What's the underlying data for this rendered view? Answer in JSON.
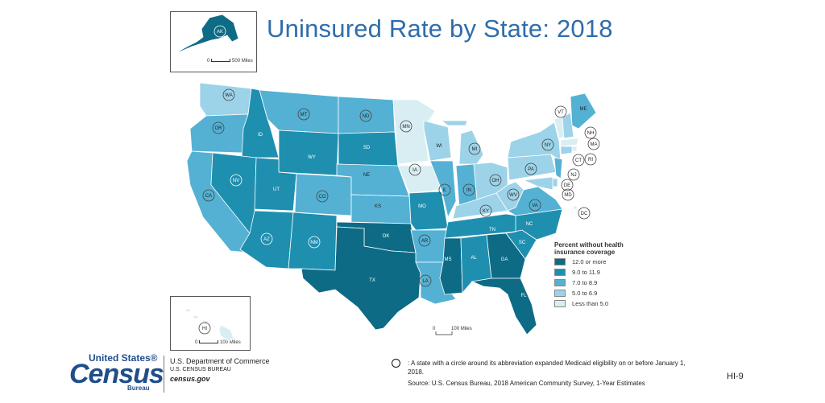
{
  "title": "Uninsured Rate by State: 2018",
  "legend": {
    "title": "Percent without health insurance coverage",
    "bins": [
      {
        "label": "12.0 or more",
        "color": "#0e6b86"
      },
      {
        "label": "9.0 to 11.9",
        "color": "#1f8fb0"
      },
      {
        "label": "7.0 to 8.9",
        "color": "#54b1d4"
      },
      {
        "label": "5.0 to 6.9",
        "color": "#9cd3e8"
      },
      {
        "label": "Less than 5.0",
        "color": "#d9eef3"
      }
    ]
  },
  "scales": {
    "alaska": "500 Miles",
    "hawaii": "100 Miles",
    "main": "100 Miles",
    "zero": "0"
  },
  "states": [
    {
      "abbr": "AK",
      "bin": 0,
      "expanded": true
    },
    {
      "abbr": "HI",
      "bin": 4,
      "expanded": true
    },
    {
      "abbr": "WA",
      "bin": 3,
      "expanded": true
    },
    {
      "abbr": "OR",
      "bin": 2,
      "expanded": true
    },
    {
      "abbr": "CA",
      "bin": 2,
      "expanded": true
    },
    {
      "abbr": "ID",
      "bin": 1,
      "expanded": false
    },
    {
      "abbr": "NV",
      "bin": 1,
      "expanded": true
    },
    {
      "abbr": "MT",
      "bin": 2,
      "expanded": true
    },
    {
      "abbr": "WY",
      "bin": 1,
      "expanded": false
    },
    {
      "abbr": "UT",
      "bin": 1,
      "expanded": false
    },
    {
      "abbr": "AZ",
      "bin": 1,
      "expanded": true
    },
    {
      "abbr": "CO",
      "bin": 2,
      "expanded": true
    },
    {
      "abbr": "NM",
      "bin": 1,
      "expanded": true
    },
    {
      "abbr": "ND",
      "bin": 2,
      "expanded": true
    },
    {
      "abbr": "SD",
      "bin": 1,
      "expanded": false
    },
    {
      "abbr": "NE",
      "bin": 2,
      "expanded": false
    },
    {
      "abbr": "KS",
      "bin": 2,
      "expanded": false
    },
    {
      "abbr": "OK",
      "bin": 0,
      "expanded": false
    },
    {
      "abbr": "TX",
      "bin": 0,
      "expanded": false
    },
    {
      "abbr": "MN",
      "bin": 4,
      "expanded": true
    },
    {
      "abbr": "IA",
      "bin": 4,
      "expanded": true
    },
    {
      "abbr": "MO",
      "bin": 1,
      "expanded": false
    },
    {
      "abbr": "AR",
      "bin": 2,
      "expanded": true
    },
    {
      "abbr": "LA",
      "bin": 2,
      "expanded": true
    },
    {
      "abbr": "WI",
      "bin": 3,
      "expanded": false
    },
    {
      "abbr": "IL",
      "bin": 2,
      "expanded": true
    },
    {
      "abbr": "MS",
      "bin": 0,
      "expanded": false
    },
    {
      "abbr": "MI",
      "bin": 3,
      "expanded": true
    },
    {
      "abbr": "IN",
      "bin": 2,
      "expanded": true
    },
    {
      "abbr": "KY",
      "bin": 3,
      "expanded": true
    },
    {
      "abbr": "TN",
      "bin": 1,
      "expanded": false
    },
    {
      "abbr": "AL",
      "bin": 1,
      "expanded": false
    },
    {
      "abbr": "OH",
      "bin": 3,
      "expanded": true
    },
    {
      "abbr": "WV",
      "bin": 3,
      "expanded": true
    },
    {
      "abbr": "GA",
      "bin": 0,
      "expanded": false
    },
    {
      "abbr": "FL",
      "bin": 0,
      "expanded": false
    },
    {
      "abbr": "SC",
      "bin": 1,
      "expanded": false
    },
    {
      "abbr": "NC",
      "bin": 1,
      "expanded": false
    },
    {
      "abbr": "VA",
      "bin": 2,
      "expanded": true
    },
    {
      "abbr": "PA",
      "bin": 3,
      "expanded": true
    },
    {
      "abbr": "NY",
      "bin": 3,
      "expanded": true
    },
    {
      "abbr": "VT",
      "bin": 4,
      "expanded": true
    },
    {
      "abbr": "ME",
      "bin": 2,
      "expanded": false
    },
    {
      "abbr": "NH",
      "bin": 3,
      "expanded": true
    },
    {
      "abbr": "MA",
      "bin": 4,
      "expanded": true
    },
    {
      "abbr": "RI",
      "bin": 4,
      "expanded": true
    },
    {
      "abbr": "CT",
      "bin": 3,
      "expanded": true
    },
    {
      "abbr": "NJ",
      "bin": 2,
      "expanded": true
    },
    {
      "abbr": "DE",
      "bin": 3,
      "expanded": true
    },
    {
      "abbr": "MD",
      "bin": 3,
      "expanded": true
    },
    {
      "abbr": "DC",
      "bin": 4,
      "expanded": true
    }
  ],
  "logo": {
    "top": "United States®",
    "main": "Census",
    "bureau": "Bureau"
  },
  "dept": {
    "line1": "U.S. Department of Commerce",
    "line2": "U.S. CENSUS BUREAU",
    "line3": "census.gov"
  },
  "note": ": A state with a circle around its abbreviation expanded Medicaid eligibility on or before January 1, 2018.",
  "source": "Source: U.S. Census Bureau, 2018 American Community Survey, 1-Year Estimates",
  "page_id": "HI-9"
}
